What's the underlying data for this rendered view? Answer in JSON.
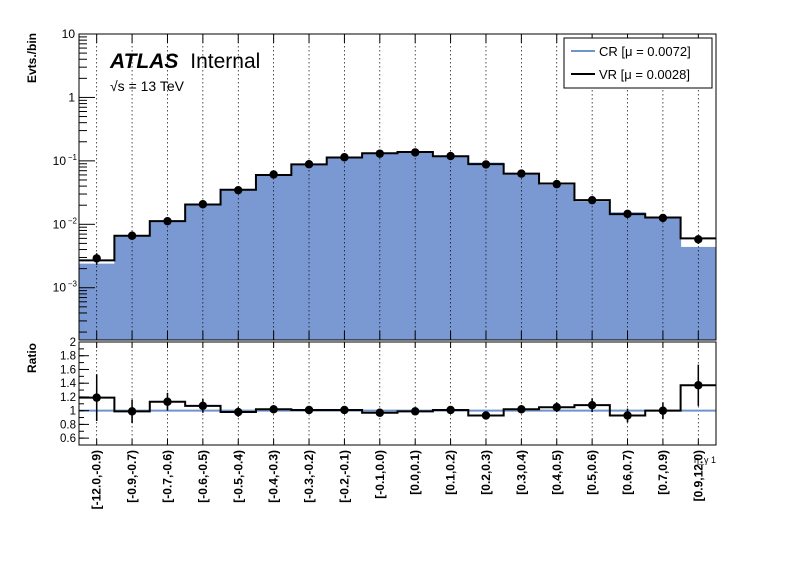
{
  "chart_data": {
    "type": "bar",
    "brand": "ATLAS",
    "brand_suffix": "Internal",
    "energy_label": "√s = 13 TeV",
    "upper_ylabel": "Evts./bin",
    "lower_ylabel": "Ratio",
    "xlabel": "η_γ 1",
    "upper_yscale": "log",
    "upper_ylim": [
      0.00015,
      10
    ],
    "upper_yticks": [
      {
        "value": 0.001,
        "label": "10",
        "exp": "−3"
      },
      {
        "value": 0.01,
        "label": "10",
        "exp": "−2"
      },
      {
        "value": 0.1,
        "label": "10",
        "exp": "−1"
      },
      {
        "value": 1,
        "label": "1",
        "exp": ""
      },
      {
        "value": 10,
        "label": "10",
        "exp": ""
      }
    ],
    "lower_ylim": [
      0.5,
      2.0
    ],
    "lower_yticks": [
      "0.6",
      "0.8",
      "1",
      "1.2",
      "1.4",
      "1.6",
      "1.8",
      "2"
    ],
    "grid": "vertical-dotted",
    "legend_position": "top-right",
    "categories": [
      "[-12.0,-0.9)",
      "[-0.9,-0.7)",
      "[-0.7,-0.6)",
      "[-0.6,-0.5)",
      "[-0.5,-0.4)",
      "[-0.4,-0.3)",
      "[-0.3,-0.2)",
      "[-0.2,-0.1)",
      "[-0.1,0.0)",
      "[0.0,0.1)",
      "[0.1,0.2)",
      "[0.2,0.3)",
      "[0.3,0.4)",
      "[0.4,0.5)",
      "[0.5,0.6)",
      "[0.6,0.7)",
      "[0.7,0.9)",
      "[0.9,12.0)"
    ],
    "series": [
      {
        "name": "CR [μ = 0.0072]",
        "kind": "filled-hist",
        "color": "#7a99d2",
        "line_color": "#6f93cc",
        "values": [
          0.0024,
          0.0067,
          0.0112,
          0.0205,
          0.035,
          0.06,
          0.088,
          0.113,
          0.132,
          0.138,
          0.118,
          0.094,
          0.062,
          0.042,
          0.023,
          0.0155,
          0.013,
          0.0044
        ]
      },
      {
        "name": "VR [μ = 0.0028]",
        "kind": "step-hist",
        "color": "#000000",
        "values": [
          0.0027,
          0.0066,
          0.0112,
          0.0205,
          0.035,
          0.06,
          0.088,
          0.113,
          0.132,
          0.138,
          0.118,
          0.089,
          0.063,
          0.044,
          0.024,
          0.0145,
          0.0128,
          0.006
        ],
        "points": [
          0.0029,
          0.0066,
          0.0112,
          0.0207,
          0.0345,
          0.061,
          0.0885,
          0.114,
          0.13,
          0.136,
          0.119,
          0.088,
          0.063,
          0.043,
          0.024,
          0.0146,
          0.0126,
          0.0058
        ],
        "errors": [
          0.0006,
          0.0005,
          0.0007,
          0.001,
          0.0016,
          0.0025,
          0.003,
          0.004,
          0.004,
          0.004,
          0.004,
          0.003,
          0.0025,
          0.002,
          0.0015,
          0.001,
          0.001,
          0.0009
        ]
      }
    ],
    "ratio": {
      "values": [
        1.19,
        0.99,
        1.13,
        1.07,
        0.98,
        1.02,
        1.01,
        1.01,
        0.97,
        0.99,
        1.01,
        0.93,
        1.02,
        1.05,
        1.08,
        0.93,
        1.0,
        1.37
      ],
      "errors": [
        0.34,
        0.17,
        0.13,
        0.1,
        0.07,
        0.06,
        0.05,
        0.05,
        0.05,
        0.05,
        0.05,
        0.06,
        0.06,
        0.07,
        0.1,
        0.1,
        0.12,
        0.3
      ],
      "reference": 1.0,
      "reference_color": "#6f93cc"
    }
  }
}
